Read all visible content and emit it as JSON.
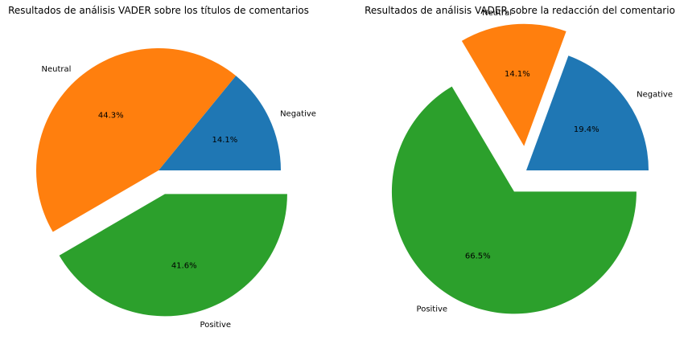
{
  "chart_data": [
    {
      "type": "pie",
      "title": "Resultados de análisis VADER sobre los títulos de comentarios",
      "labels": [
        "Negative",
        "Neutral",
        "Positive"
      ],
      "values": [
        14.1,
        44.3,
        41.6
      ],
      "percent_labels": [
        "14.1%",
        "44.3%",
        "41.6%"
      ],
      "colors": [
        "#1f77b4",
        "#ff7f0e",
        "#2ca02c"
      ],
      "exploded": [
        "Positive"
      ],
      "start_angle": 0,
      "direction": "counterclockwise"
    },
    {
      "type": "pie",
      "title": "Resultados de análisis VADER sobre la redacción del comentario",
      "labels": [
        "Negative",
        "Neutral",
        "Positive"
      ],
      "values": [
        19.4,
        14.1,
        66.5
      ],
      "percent_labels": [
        "19.4%",
        "14.1%",
        "66.5%"
      ],
      "colors": [
        "#1f77b4",
        "#ff7f0e",
        "#2ca02c"
      ],
      "exploded": [
        "Neutral",
        "Positive"
      ],
      "start_angle": 0,
      "direction": "counterclockwise"
    }
  ]
}
